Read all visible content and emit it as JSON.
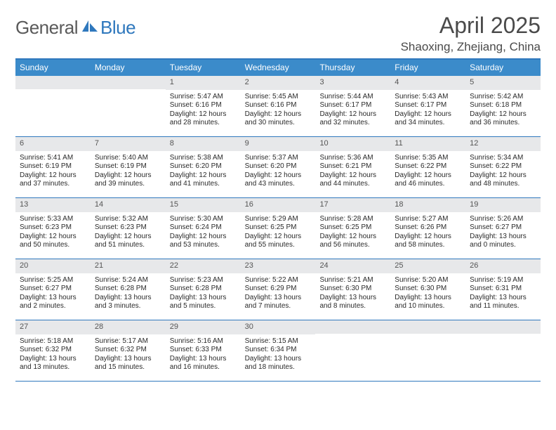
{
  "logo": {
    "text1": "General",
    "text2": "Blue"
  },
  "title": "April 2025",
  "location": "Shaoxing, Zhejiang, China",
  "colors": {
    "header_bg": "#3b8bca",
    "border": "#2f78bd",
    "daybar_bg": "#e7e8ea",
    "text": "#2a2a2a",
    "title_text": "#4a4a4a"
  },
  "days_of_week": [
    "Sunday",
    "Monday",
    "Tuesday",
    "Wednesday",
    "Thursday",
    "Friday",
    "Saturday"
  ],
  "weeks": [
    [
      {
        "empty": true
      },
      {
        "empty": true
      },
      {
        "day": "1",
        "sunrise": "Sunrise: 5:47 AM",
        "sunset": "Sunset: 6:16 PM",
        "daylight": "Daylight: 12 hours and 28 minutes."
      },
      {
        "day": "2",
        "sunrise": "Sunrise: 5:45 AM",
        "sunset": "Sunset: 6:16 PM",
        "daylight": "Daylight: 12 hours and 30 minutes."
      },
      {
        "day": "3",
        "sunrise": "Sunrise: 5:44 AM",
        "sunset": "Sunset: 6:17 PM",
        "daylight": "Daylight: 12 hours and 32 minutes."
      },
      {
        "day": "4",
        "sunrise": "Sunrise: 5:43 AM",
        "sunset": "Sunset: 6:17 PM",
        "daylight": "Daylight: 12 hours and 34 minutes."
      },
      {
        "day": "5",
        "sunrise": "Sunrise: 5:42 AM",
        "sunset": "Sunset: 6:18 PM",
        "daylight": "Daylight: 12 hours and 36 minutes."
      }
    ],
    [
      {
        "day": "6",
        "sunrise": "Sunrise: 5:41 AM",
        "sunset": "Sunset: 6:19 PM",
        "daylight": "Daylight: 12 hours and 37 minutes."
      },
      {
        "day": "7",
        "sunrise": "Sunrise: 5:40 AM",
        "sunset": "Sunset: 6:19 PM",
        "daylight": "Daylight: 12 hours and 39 minutes."
      },
      {
        "day": "8",
        "sunrise": "Sunrise: 5:38 AM",
        "sunset": "Sunset: 6:20 PM",
        "daylight": "Daylight: 12 hours and 41 minutes."
      },
      {
        "day": "9",
        "sunrise": "Sunrise: 5:37 AM",
        "sunset": "Sunset: 6:20 PM",
        "daylight": "Daylight: 12 hours and 43 minutes."
      },
      {
        "day": "10",
        "sunrise": "Sunrise: 5:36 AM",
        "sunset": "Sunset: 6:21 PM",
        "daylight": "Daylight: 12 hours and 44 minutes."
      },
      {
        "day": "11",
        "sunrise": "Sunrise: 5:35 AM",
        "sunset": "Sunset: 6:22 PM",
        "daylight": "Daylight: 12 hours and 46 minutes."
      },
      {
        "day": "12",
        "sunrise": "Sunrise: 5:34 AM",
        "sunset": "Sunset: 6:22 PM",
        "daylight": "Daylight: 12 hours and 48 minutes."
      }
    ],
    [
      {
        "day": "13",
        "sunrise": "Sunrise: 5:33 AM",
        "sunset": "Sunset: 6:23 PM",
        "daylight": "Daylight: 12 hours and 50 minutes."
      },
      {
        "day": "14",
        "sunrise": "Sunrise: 5:32 AM",
        "sunset": "Sunset: 6:23 PM",
        "daylight": "Daylight: 12 hours and 51 minutes."
      },
      {
        "day": "15",
        "sunrise": "Sunrise: 5:30 AM",
        "sunset": "Sunset: 6:24 PM",
        "daylight": "Daylight: 12 hours and 53 minutes."
      },
      {
        "day": "16",
        "sunrise": "Sunrise: 5:29 AM",
        "sunset": "Sunset: 6:25 PM",
        "daylight": "Daylight: 12 hours and 55 minutes."
      },
      {
        "day": "17",
        "sunrise": "Sunrise: 5:28 AM",
        "sunset": "Sunset: 6:25 PM",
        "daylight": "Daylight: 12 hours and 56 minutes."
      },
      {
        "day": "18",
        "sunrise": "Sunrise: 5:27 AM",
        "sunset": "Sunset: 6:26 PM",
        "daylight": "Daylight: 12 hours and 58 minutes."
      },
      {
        "day": "19",
        "sunrise": "Sunrise: 5:26 AM",
        "sunset": "Sunset: 6:27 PM",
        "daylight": "Daylight: 13 hours and 0 minutes."
      }
    ],
    [
      {
        "day": "20",
        "sunrise": "Sunrise: 5:25 AM",
        "sunset": "Sunset: 6:27 PM",
        "daylight": "Daylight: 13 hours and 2 minutes."
      },
      {
        "day": "21",
        "sunrise": "Sunrise: 5:24 AM",
        "sunset": "Sunset: 6:28 PM",
        "daylight": "Daylight: 13 hours and 3 minutes."
      },
      {
        "day": "22",
        "sunrise": "Sunrise: 5:23 AM",
        "sunset": "Sunset: 6:28 PM",
        "daylight": "Daylight: 13 hours and 5 minutes."
      },
      {
        "day": "23",
        "sunrise": "Sunrise: 5:22 AM",
        "sunset": "Sunset: 6:29 PM",
        "daylight": "Daylight: 13 hours and 7 minutes."
      },
      {
        "day": "24",
        "sunrise": "Sunrise: 5:21 AM",
        "sunset": "Sunset: 6:30 PM",
        "daylight": "Daylight: 13 hours and 8 minutes."
      },
      {
        "day": "25",
        "sunrise": "Sunrise: 5:20 AM",
        "sunset": "Sunset: 6:30 PM",
        "daylight": "Daylight: 13 hours and 10 minutes."
      },
      {
        "day": "26",
        "sunrise": "Sunrise: 5:19 AM",
        "sunset": "Sunset: 6:31 PM",
        "daylight": "Daylight: 13 hours and 11 minutes."
      }
    ],
    [
      {
        "day": "27",
        "sunrise": "Sunrise: 5:18 AM",
        "sunset": "Sunset: 6:32 PM",
        "daylight": "Daylight: 13 hours and 13 minutes."
      },
      {
        "day": "28",
        "sunrise": "Sunrise: 5:17 AM",
        "sunset": "Sunset: 6:32 PM",
        "daylight": "Daylight: 13 hours and 15 minutes."
      },
      {
        "day": "29",
        "sunrise": "Sunrise: 5:16 AM",
        "sunset": "Sunset: 6:33 PM",
        "daylight": "Daylight: 13 hours and 16 minutes."
      },
      {
        "day": "30",
        "sunrise": "Sunrise: 5:15 AM",
        "sunset": "Sunset: 6:34 PM",
        "daylight": "Daylight: 13 hours and 18 minutes."
      },
      {
        "empty": true
      },
      {
        "empty": true
      },
      {
        "empty": true
      }
    ]
  ]
}
